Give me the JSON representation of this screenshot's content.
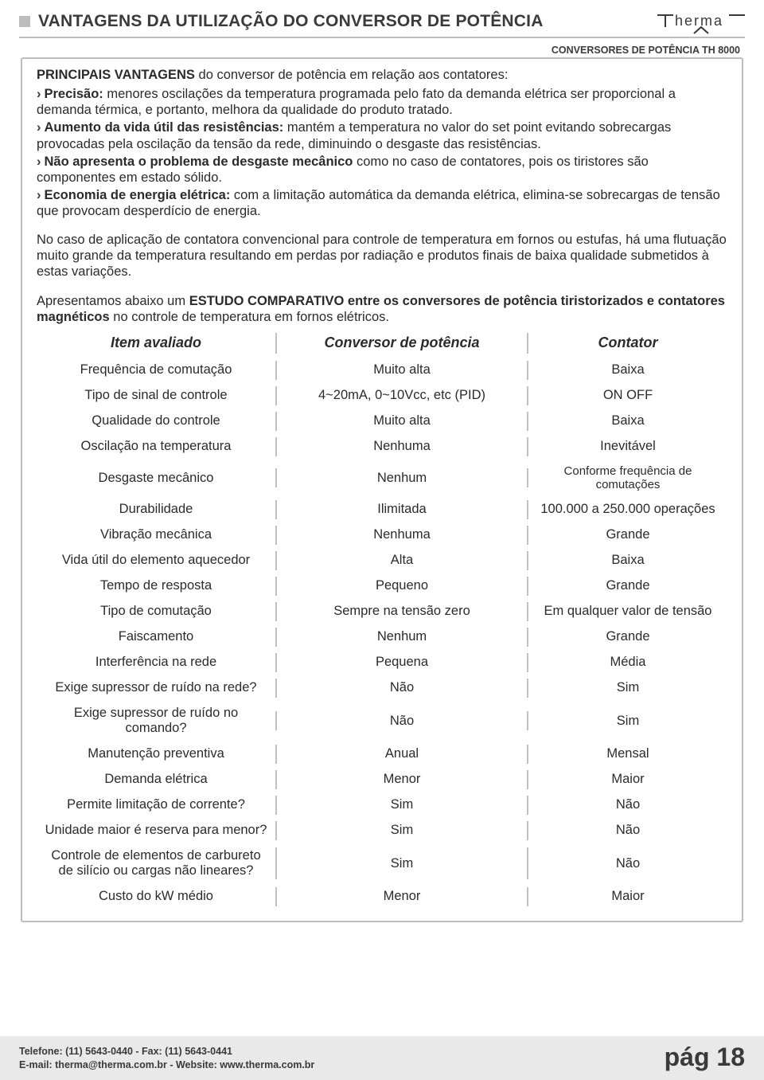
{
  "header": {
    "title": "VANTAGENS DA UTILIZAÇÃO DO CONVERSOR DE POTÊNCIA",
    "subtitle": "CONVERSORES DE POTÊNCIA TH 8000",
    "logo_text": "therma"
  },
  "colors": {
    "rule": "#bdbdbd",
    "text": "#2b2b2b",
    "footer_bg": "#e9e9e9"
  },
  "intro": {
    "lead_bold": "PRINCIPAIS VANTAGENS",
    "lead_rest": " do conversor de potência em relação aos contatores:"
  },
  "bullets": [
    {
      "bold": "Precisão:",
      "text": " menores oscilações da temperatura programada pelo fato da demanda elétrica ser proporcional a demanda térmica, e portanto, melhora da qualidade do produto tratado."
    },
    {
      "bold": "Aumento da vida útil das resistências:",
      "text": " mantém a temperatura no valor do set point evitando sobrecargas provocadas pela oscilação da tensão da rede, diminuindo o desgaste das resistências."
    },
    {
      "bold": "Não apresenta o problema de desgaste mecânico",
      "text": " como no caso de contatores, pois os tiristores são componentes em estado sólido."
    },
    {
      "bold": "Economia de energia elétrica:",
      "text": " com a limitação automática da demanda elétrica, elimina-se sobrecargas de tensão que provocam desperdício de energia."
    }
  ],
  "paragraph": "No caso de aplicação de contatora convencional para controle de temperatura em fornos ou estufas, há uma flutuação muito grande da temperatura resultando em perdas por radiação e produtos finais de baixa qualidade submetidos à estas variações.",
  "study": {
    "pre": "Apresentamos abaixo um ",
    "bold": "ESTUDO COMPARATIVO entre os conversores de potência tiristorizados e contatores magnéticos",
    "post": " no controle de temperatura em fornos elétricos."
  },
  "table": {
    "headers": [
      "Item avaliado",
      "Conversor de potência",
      "Contator"
    ],
    "rows": [
      [
        "Frequência de comutação",
        "Muito alta",
        "Baixa"
      ],
      [
        "Tipo de sinal de controle",
        "4~20mA, 0~10Vcc, etc (PID)",
        "ON OFF"
      ],
      [
        "Qualidade do controle",
        "Muito alta",
        "Baixa"
      ],
      [
        "Oscilação na temperatura",
        "Nenhuma",
        "Inevitável"
      ],
      [
        "Desgaste mecânico",
        "Nenhum",
        "Conforme frequência de comutações"
      ],
      [
        "Durabilidade",
        "Ilimitada",
        "100.000 a 250.000 operações"
      ],
      [
        "Vibração mecânica",
        "Nenhuma",
        "Grande"
      ],
      [
        "Vida útil do elemento aquecedor",
        "Alta",
        "Baixa"
      ],
      [
        "Tempo de resposta",
        "Pequeno",
        "Grande"
      ],
      [
        "Tipo de comutação",
        "Sempre na tensão zero",
        "Em qualquer valor de tensão"
      ],
      [
        "Faiscamento",
        "Nenhum",
        "Grande"
      ],
      [
        "Interferência na rede",
        "Pequena",
        "Média"
      ],
      [
        "Exige supressor de ruído na rede?",
        "Não",
        "Sim"
      ],
      [
        "Exige supressor de ruído no comando?",
        "Não",
        "Sim"
      ],
      [
        "Manutenção preventiva",
        "Anual",
        "Mensal"
      ],
      [
        "Demanda elétrica",
        "Menor",
        "Maior"
      ],
      [
        "Permite limitação de corrente?",
        "Sim",
        "Não"
      ],
      [
        "Unidade maior é reserva para menor?",
        "Sim",
        "Não"
      ],
      [
        "Controle de elementos de carbureto de silício ou cargas não lineares?",
        "Sim",
        "Não"
      ],
      [
        "Custo do kW médio",
        "Menor",
        "Maior"
      ]
    ],
    "small_rows": [
      4
    ],
    "twoline_rows": [
      18
    ],
    "sep_color": "#c0c0c0"
  },
  "footer": {
    "line1": "Telefone: (11) 5643-0440 - Fax: (11) 5643-0441",
    "line2": "E-mail: therma@therma.com.br  - Website: www.therma.com.br",
    "page": "pág 18"
  }
}
